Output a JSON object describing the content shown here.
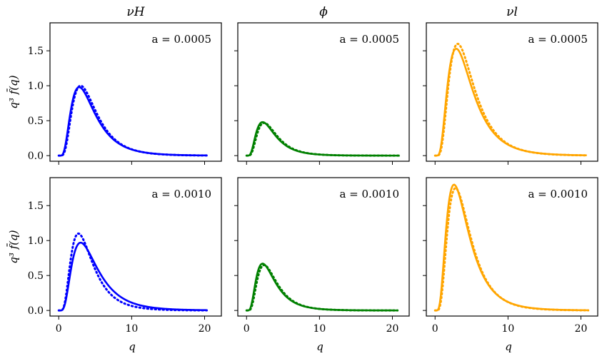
{
  "figure": {
    "xlabel": "q",
    "ylabel": "q³ f̄(q)",
    "ylim": [
      -0.08,
      1.9
    ],
    "xlim": [
      -1.2,
      22.3
    ],
    "yticks": [
      0.0,
      0.5,
      1.0,
      1.5
    ],
    "ytick_labels": [
      "0.0",
      "0.5",
      "1.0",
      "1.5"
    ],
    "xticks": [
      0,
      10,
      20
    ],
    "xtick_labels": [
      "0",
      "10",
      "20"
    ],
    "column_titles": [
      "νH",
      "ϕ",
      "νl"
    ],
    "row_annotations": [
      "a = 0.0005",
      "a = 0.0010"
    ]
  },
  "chart_data": [
    {
      "type": "line",
      "row": 0,
      "col": 0,
      "title": "νH",
      "annotation": "a = 0.0005",
      "color": "#0000ff",
      "peak_solid": 0.98,
      "peak_dotted": 1.0,
      "peak_x_solid": 2.8,
      "peak_x_dotted": 3.0,
      "x_end": 20.3
    },
    {
      "type": "line",
      "row": 0,
      "col": 1,
      "title": "ϕ",
      "annotation": "a = 0.0005",
      "color": "#008000",
      "peak_solid": 0.48,
      "peak_dotted": 0.47,
      "peak_x_solid": 2.2,
      "peak_x_dotted": 2.4,
      "x_end": 21.0
    },
    {
      "type": "line",
      "row": 0,
      "col": 2,
      "title": "νl",
      "annotation": "a = 0.0005",
      "color": "#ffa500",
      "peak_solid": 1.53,
      "peak_dotted": 1.6,
      "peak_x_solid": 2.9,
      "peak_x_dotted": 3.1,
      "x_end": 20.8
    },
    {
      "type": "line",
      "row": 1,
      "col": 0,
      "title": "νH",
      "annotation": "a = 0.0010",
      "color": "#0000ff",
      "peak_solid": 0.97,
      "peak_dotted": 1.1,
      "peak_x_solid": 3.0,
      "peak_x_dotted": 2.7,
      "x_end": 20.3
    },
    {
      "type": "line",
      "row": 1,
      "col": 1,
      "title": "ϕ",
      "annotation": "a = 0.0010",
      "color": "#008000",
      "peak_solid": 0.67,
      "peak_dotted": 0.65,
      "peak_x_solid": 2.2,
      "peak_x_dotted": 2.4,
      "x_end": 20.7
    },
    {
      "type": "line",
      "row": 1,
      "col": 2,
      "title": "νl",
      "annotation": "a = 0.0010",
      "color": "#ffa500",
      "peak_solid": 1.8,
      "peak_dotted": 1.75,
      "peak_x_solid": 2.6,
      "peak_x_dotted": 2.8,
      "x_end": 21.0
    }
  ]
}
